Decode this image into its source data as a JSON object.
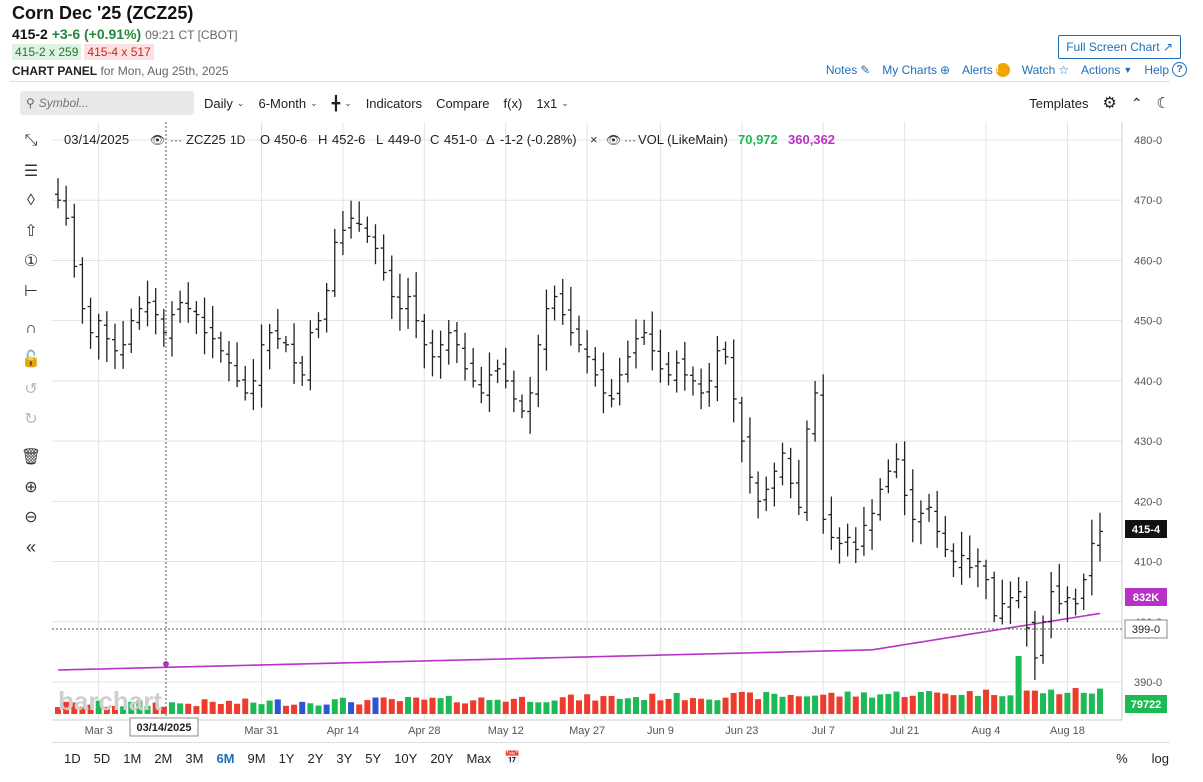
{
  "header": {
    "title": "Corn Dec '25 (ZCZ25)",
    "last": "415-2",
    "change": "+3-6 (+0.91%)",
    "time": "09:21 CT [CBOT]",
    "bid": "415-2 x 259",
    "ask": "415-4 x 517",
    "panel_label": "CHART PANEL",
    "panel_date": "for Mon, Aug 25th, 2025",
    "fullscreen": "Full Screen Chart",
    "links": {
      "notes": "Notes",
      "mycharts": "My Charts",
      "alerts": "Alerts",
      "alerts_badge": "!",
      "watch": "Watch",
      "actions": "Actions",
      "help": "Help"
    }
  },
  "toolbar": {
    "search_placeholder": "Symbol...",
    "interval": "Daily",
    "period": "6-Month",
    "indicators": "Indicators",
    "compare": "Compare",
    "fx": "f(x)",
    "layout": "1x1",
    "templates": "Templates"
  },
  "legend": {
    "date": "03/14/2025",
    "symbol": "ZCZ25",
    "interval": "1D",
    "open_label": "O",
    "open": "450-6",
    "high_label": "H",
    "high": "452-6",
    "low_label": "L",
    "low": "449-0",
    "close_label": "C",
    "close": "451-0",
    "change_label": "Δ",
    "change": "-1-2 (-0.28%)",
    "vol_label": "VOL (LikeMain)",
    "vol_value": "70,972",
    "vol_avg": "360,362"
  },
  "axis_badges": {
    "price": "415-4",
    "vol_avg": "832K",
    "crosshair": "399-0",
    "volume": "79722",
    "crosshair_date": "03/14/2025"
  },
  "watermark": "barchart",
  "colors": {
    "up": "#1db954",
    "down": "#ee3b2b",
    "avg": "#b832c8",
    "blue": "#2c56d6"
  },
  "chart_data": {
    "type": "bar",
    "y_ticks": [
      "390-0",
      "400-0",
      "410-0",
      "420-0",
      "430-0",
      "440-0",
      "450-0",
      "460-0",
      "470-0",
      "480-0"
    ],
    "ylim": [
      386,
      482
    ],
    "x_ticks": [
      "Mar 3",
      "Mar 31",
      "Apr 14",
      "Apr 28",
      "May 12",
      "May 27",
      "Jun 9",
      "Jun 23",
      "Jul 7",
      "Jul 21",
      "Aug 4",
      "Aug 18"
    ],
    "grid": true,
    "close_price": [
      470,
      467,
      459,
      452,
      448,
      450,
      447,
      445,
      446,
      450,
      452,
      453,
      451,
      448,
      451,
      453,
      452,
      451,
      448,
      447,
      445,
      443,
      440,
      438,
      440,
      446,
      448,
      447,
      446,
      443,
      441,
      448,
      450,
      455,
      463,
      465,
      467,
      466,
      464,
      462,
      458,
      454,
      452,
      454,
      450,
      446,
      444,
      446,
      448,
      446,
      442,
      440,
      438,
      441,
      442,
      440,
      437,
      435,
      438,
      446,
      452,
      454,
      451,
      448,
      446,
      444,
      441,
      438,
      437,
      441,
      444,
      447,
      448,
      445,
      442,
      441,
      443,
      441,
      440,
      438,
      440,
      445,
      444,
      437,
      430,
      424,
      420,
      422,
      425,
      428,
      423,
      419,
      432,
      438,
      417,
      414,
      413,
      414,
      412,
      416,
      418,
      422,
      425,
      427,
      421,
      417,
      418,
      419,
      415,
      412,
      410,
      411,
      409,
      410,
      407,
      401,
      403,
      404,
      405,
      399,
      394,
      400,
      405,
      403,
      404,
      403,
      407,
      413,
      415
    ],
    "volume_scale": 100
  }
}
